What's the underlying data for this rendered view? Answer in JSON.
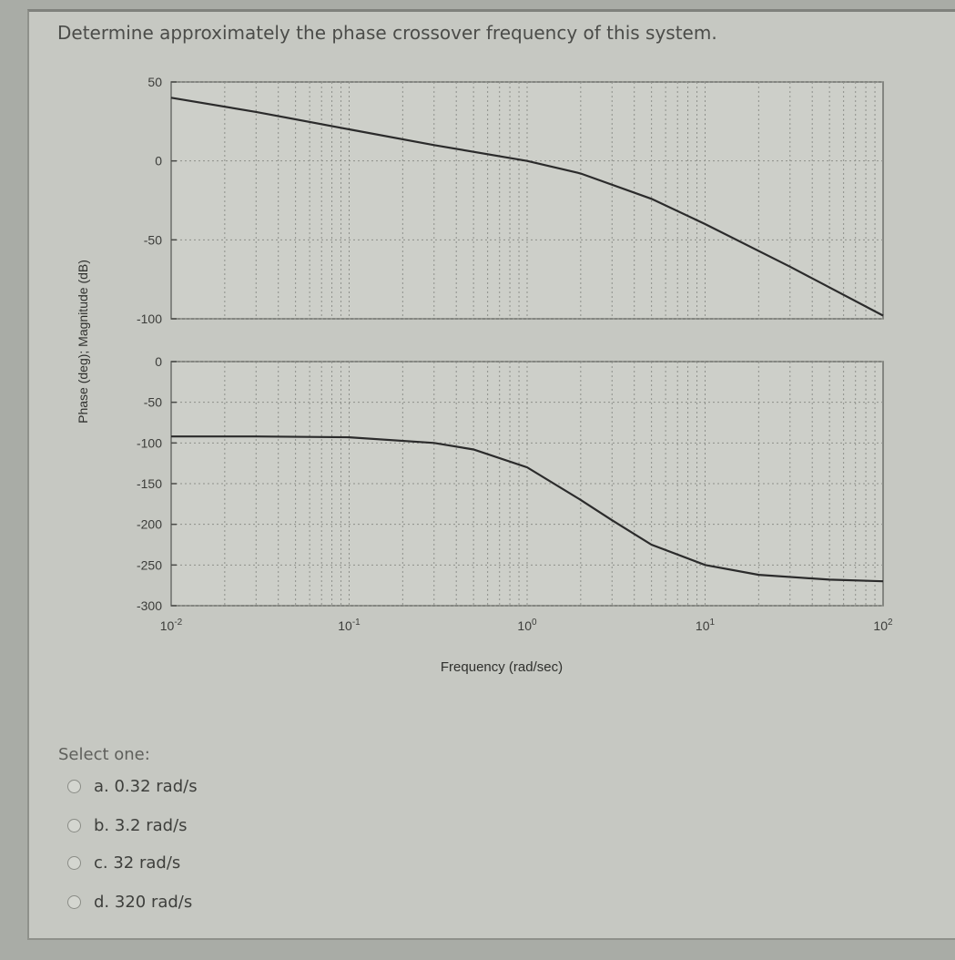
{
  "question": "Determine approximately the phase crossover frequency of this system.",
  "select_label": "Select one:",
  "options": [
    {
      "label": "a. 0.32 rad/s"
    },
    {
      "label": "b. 3.2 rad/s"
    },
    {
      "label": "c. 32 rad/s"
    },
    {
      "label": "d. 320 rad/s"
    }
  ],
  "colors": {
    "background": "#c6c8c2",
    "curve": "#2b2b2b",
    "text": "#3e3f3c"
  },
  "chart_data": [
    {
      "type": "line",
      "title": "",
      "xlabel": "Frequency (rad/sec)",
      "ylabel": "Phase (deg); Magnitude (dB)",
      "xscale": "log",
      "xlim": [
        0.01,
        100
      ],
      "ylim": [
        -100,
        50
      ],
      "yticks": [
        "50",
        "0",
        "-50",
        "-100"
      ],
      "grid": true,
      "series": [
        {
          "x": [
            0.01,
            0.03,
            0.1,
            0.3,
            1,
            2,
            5,
            10,
            30,
            100
          ],
          "y": [
            40,
            31,
            20,
            10,
            0,
            -8,
            -24,
            -40,
            -67,
            -98
          ]
        }
      ]
    },
    {
      "type": "line",
      "title": "",
      "xlabel": "Frequency (rad/sec)",
      "ylabel": "Phase (deg); Magnitude (dB)",
      "xscale": "log",
      "xlim": [
        0.01,
        100
      ],
      "ylim": [
        -300,
        0
      ],
      "xticks": [
        "10-2",
        "10-1",
        "100",
        "101",
        "102"
      ],
      "yticks": [
        "0",
        "-50",
        "-100",
        "-150",
        "-200",
        "-250",
        "-300"
      ],
      "grid": true,
      "series": [
        {
          "x": [
            0.01,
            0.03,
            0.1,
            0.3,
            0.5,
            1,
            2,
            3,
            5,
            10,
            20,
            50,
            100
          ],
          "y": [
            -92,
            -92,
            -93,
            -100,
            -108,
            -130,
            -170,
            -195,
            -225,
            -250,
            -262,
            -268,
            -270
          ]
        }
      ]
    }
  ]
}
